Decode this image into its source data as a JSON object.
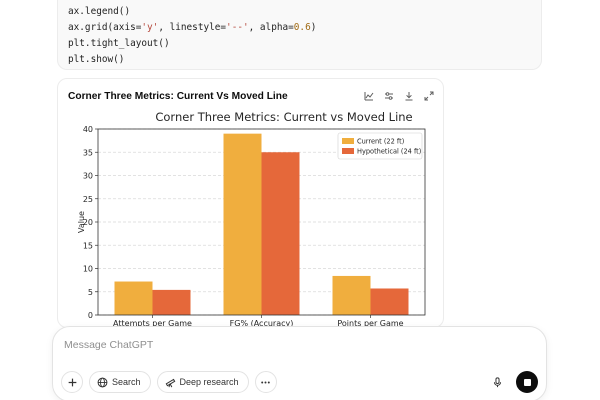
{
  "code": {
    "lines": [
      {
        "parts": [
          {
            "t": "ax.legend()",
            "c": ""
          }
        ]
      },
      {
        "parts": [
          {
            "t": "ax.grid(axis=",
            "c": ""
          },
          {
            "t": "'y'",
            "c": "str"
          },
          {
            "t": ", linestyle=",
            "c": ""
          },
          {
            "t": "'--'",
            "c": "str"
          },
          {
            "t": ", alpha=",
            "c": ""
          },
          {
            "t": "0.6",
            "c": "num"
          },
          {
            "t": ")",
            "c": ""
          }
        ]
      },
      {
        "parts": [
          {
            "t": "plt.tight_layout()",
            "c": ""
          }
        ]
      },
      {
        "parts": [
          {
            "t": "plt.show()",
            "c": ""
          }
        ]
      }
    ]
  },
  "card": {
    "title": "Corner Three Metrics: Current Vs Moved Line",
    "tools": [
      "chart-type-icon",
      "settings-sliders-icon",
      "download-icon",
      "expand-icon"
    ]
  },
  "chart_data": {
    "type": "bar",
    "title": "Corner Three Metrics: Current vs Moved Line",
    "xlabel": "",
    "ylabel": "Value",
    "categories": [
      "Attempts per Game",
      "FG% (Accuracy)",
      "Points per Game"
    ],
    "series": [
      {
        "name": "Current (22 ft)",
        "color": "#f0ae3e",
        "values": [
          7.2,
          39.0,
          8.4
        ]
      },
      {
        "name": "Hypothetical (24 ft)",
        "color": "#e5683a",
        "values": [
          5.4,
          35.0,
          5.7
        ]
      }
    ],
    "ylim": [
      0,
      40
    ],
    "yticks": [
      0,
      5,
      10,
      15,
      20,
      25,
      30,
      35,
      40
    ],
    "grid": "y, dashed",
    "legend": "top-right"
  },
  "composer": {
    "placeholder": "Message ChatGPT",
    "search_label": "Search",
    "deep_research_label": "Deep research"
  }
}
